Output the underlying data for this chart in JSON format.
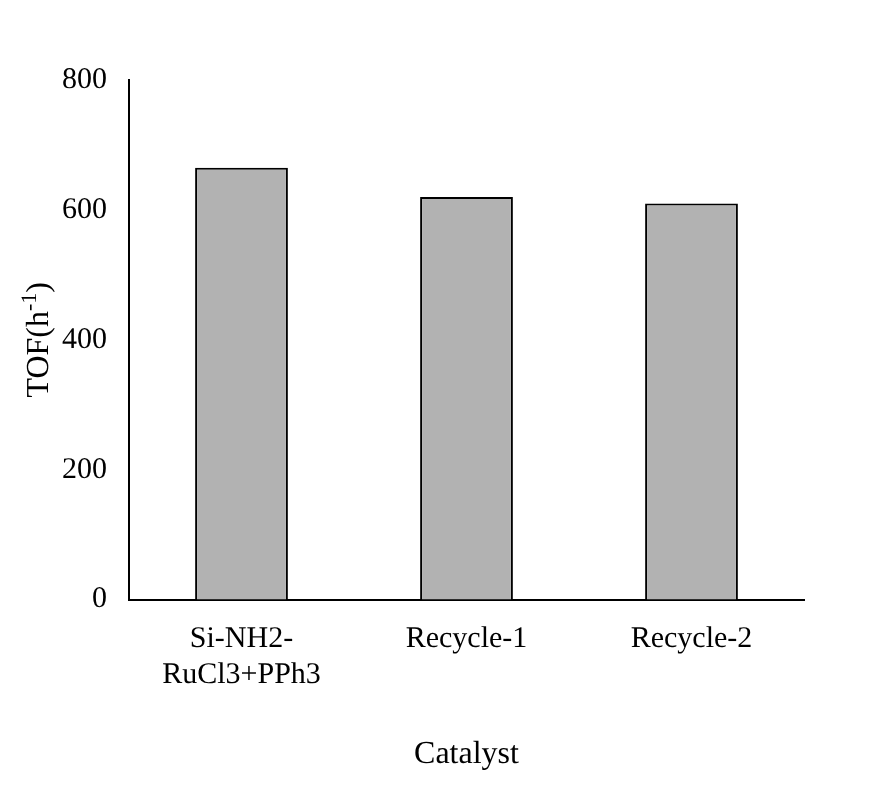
{
  "chart_data": {
    "type": "bar",
    "xlabel": "Catalyst",
    "ylabel": "TOF(h$^{-1}$)",
    "categories": [
      "Si-NH2-RuCl3+PPh3",
      "Recycle-1",
      "Recycle-2"
    ],
    "values": [
      665,
      620,
      610
    ],
    "color": "#b2b2b2",
    "ylim": [
      0,
      800
    ],
    "yticks": [
      0,
      200,
      400,
      600,
      800
    ],
    "grid": false
  }
}
